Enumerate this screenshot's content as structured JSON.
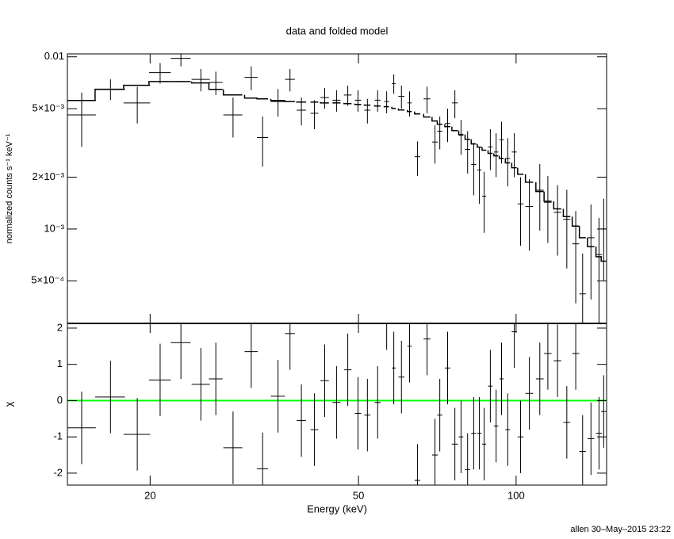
{
  "chart_data": [
    {
      "type": "errorbar",
      "title": "data and folded model",
      "ylabel": "normalized counts s⁻¹ keV⁻¹",
      "xscale": "log",
      "yscale": "log",
      "xlim": [
        13.9,
        148.9
      ],
      "ylim": [
        0.000283,
        0.0104
      ],
      "yticks": [
        {
          "value": 0.01,
          "label": "0.01"
        },
        {
          "value": 0.005,
          "label": "5×10⁻³"
        },
        {
          "value": 0.002,
          "label": "2×10⁻³"
        },
        {
          "value": 0.001,
          "label": "10⁻³"
        },
        {
          "value": 0.0005,
          "label": "5×10⁻⁴"
        }
      ],
      "color": "#000000",
      "x": [
        14.8,
        16.8,
        18.9,
        20.9,
        22.9,
        25.0,
        26.7,
        28.8,
        31.2,
        32.8,
        35.1,
        37.0,
        38.9,
        41.2,
        43.1,
        45.4,
        47.7,
        49.9,
        52.0,
        54.4,
        56.6,
        58.4,
        60.4,
        62.6,
        64.8,
        67.6,
        70.0,
        71.5,
        74.0,
        76.4,
        78.5,
        80.8,
        83.0,
        85.1,
        86.9,
        89.3,
        91.6,
        93.8,
        96.4,
        99.2,
        102,
        106,
        111,
        115,
        120,
        125,
        130,
        134,
        139,
        144,
        147
      ],
      "xerr": [
        0.95,
        1.1,
        1.1,
        1.0,
        1.0,
        1.0,
        0.8,
        1.2,
        0.9,
        0.8,
        1.1,
        0.8,
        0.8,
        0.7,
        0.8,
        0.8,
        0.8,
        0.7,
        0.7,
        0.7,
        0.6,
        0.5,
        0.8,
        0.6,
        0.8,
        1.0,
        0.9,
        0.8,
        0.9,
        1.0,
        0.8,
        0.9,
        0.9,
        0.8,
        0.8,
        0.9,
        0.9,
        0.9,
        1.0,
        1.1,
        1.3,
        1.8,
        1.9,
        1.9,
        2.0,
        1.9,
        2.0,
        1.9,
        2.1,
        1.9,
        1.6
      ],
      "values": [
        0.0046,
        0.0065,
        0.0054,
        0.0081,
        0.0098,
        0.0074,
        0.0071,
        0.0046,
        0.0076,
        0.0034,
        0.0055,
        0.0074,
        0.0049,
        0.0047,
        0.0058,
        0.0056,
        0.006,
        0.0056,
        0.0049,
        0.0056,
        0.0055,
        0.007,
        0.0059,
        0.0054,
        0.00263,
        0.0057,
        0.0032,
        0.0037,
        0.0041,
        0.0054,
        0.0035,
        0.0029,
        0.00237,
        0.0022,
        0.00155,
        0.003,
        0.0028,
        0.0033,
        0.00257,
        0.0028,
        0.0014,
        0.00135,
        0.00168,
        0.00143,
        0.00125,
        0.00114,
        0.00082,
        0.00042,
        0.00089,
        0.00071,
        0.001
      ],
      "yerr": [
        0.0016,
        0.0009,
        0.0013,
        0.0011,
        0.001,
        0.0011,
        0.0011,
        0.0012,
        0.0012,
        0.0011,
        0.001,
        0.0011,
        0.0009,
        0.0009,
        0.0008,
        0.0008,
        0.0008,
        0.0008,
        0.0008,
        0.0008,
        0.0008,
        0.0009,
        0.0009,
        0.0009,
        0.0006,
        0.001,
        0.0008,
        0.0008,
        0.0009,
        0.001,
        0.0008,
        0.0008,
        0.0008,
        0.0008,
        0.0006,
        0.0008,
        0.0008,
        0.0009,
        0.0008,
        0.0008,
        0.0006,
        0.0006,
        0.0007,
        0.0006,
        0.00055,
        0.00055,
        0.00045,
        0.0003,
        0.0005,
        0.00045,
        0.0005
      ],
      "model": [
        0.00558,
        0.00647,
        0.00683,
        0.00719,
        0.00719,
        0.00705,
        0.00647,
        0.00601,
        0.00576,
        0.0057,
        0.00558,
        0.0055,
        0.00546,
        0.00546,
        0.0054,
        0.0054,
        0.00535,
        0.00529,
        0.00524,
        0.00518,
        0.00513,
        0.00502,
        0.00491,
        0.00481,
        0.00466,
        0.00447,
        0.00424,
        0.00406,
        0.00393,
        0.00373,
        0.00354,
        0.00332,
        0.00312,
        0.00299,
        0.00287,
        0.00275,
        0.00266,
        0.00257,
        0.00242,
        0.00227,
        0.00208,
        0.00187,
        0.00165,
        0.00145,
        0.00131,
        0.00118,
        0.00104,
        0.00089,
        0.00079,
        0.00069,
        0.00065
      ]
    },
    {
      "type": "residual",
      "ylabel": "χ",
      "xlabel": "Energy (keV)",
      "xticks": [
        20,
        50,
        100
      ],
      "ylim": [
        -2.33,
        2.13
      ],
      "yticks": [
        -2,
        -1,
        0,
        1,
        2
      ],
      "values": [
        -0.75,
        0.1,
        -0.93,
        0.57,
        1.6,
        0.45,
        0.6,
        -1.3,
        1.35,
        -1.88,
        0.12,
        1.85,
        -0.55,
        -0.8,
        0.55,
        -0.05,
        0.85,
        -0.35,
        -0.4,
        -0.05,
        2.4,
        0.9,
        0.65,
        1.5,
        -2.2,
        1.7,
        -1.5,
        -0.4,
        0.9,
        -1.2,
        -1.0,
        -1.9,
        -0.9,
        -0.9,
        -1.2,
        0.4,
        -0.7,
        0.6,
        -0.8,
        1.9,
        -1.0,
        0.2,
        0.6,
        1.3,
        1.1,
        -0.6,
        1.3,
        -1.4,
        -1.05,
        -0.9,
        -0.3
      ],
      "yerr": 1,
      "color": "#000000",
      "reference_line": 0,
      "reference_color": "#00ff00",
      "footer": "allen 30–May–2015 23:22"
    }
  ]
}
